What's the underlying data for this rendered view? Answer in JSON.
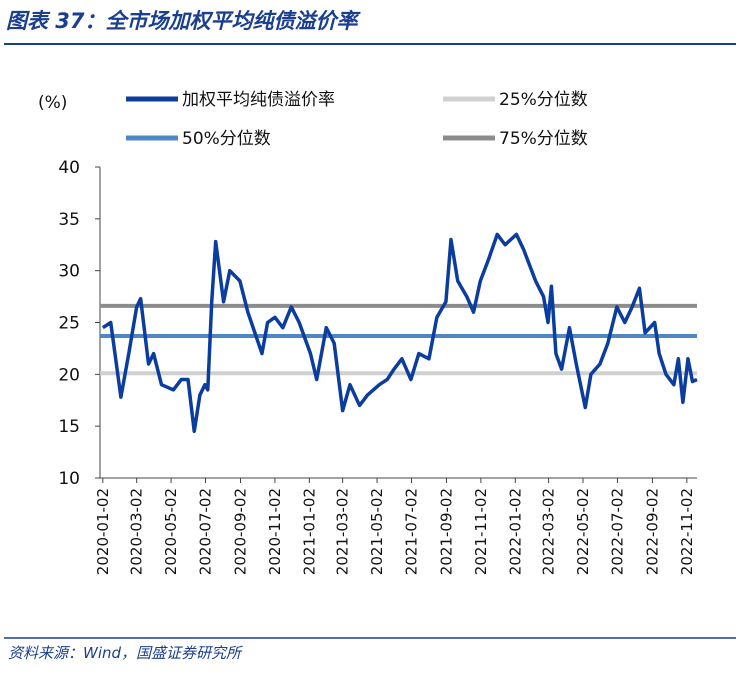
{
  "title": "图表 37：全市场加权平均纯债溢价率",
  "source": "资料来源：Wind，国盛证券研究所",
  "chart_data": {
    "type": "line",
    "y_unit_label": "(%)",
    "x": [
      "2020-01-02",
      "2020-01-16",
      "2020-02-03",
      "2020-02-17",
      "2020-03-02",
      "2020-03-09",
      "2020-03-23",
      "2020-04-01",
      "2020-04-15",
      "2020-05-06",
      "2020-05-20",
      "2020-06-01",
      "2020-06-12",
      "2020-06-22",
      "2020-07-01",
      "2020-07-06",
      "2020-07-13",
      "2020-07-20",
      "2020-08-03",
      "2020-08-14",
      "2020-09-01",
      "2020-09-15",
      "2020-10-10",
      "2020-10-20",
      "2020-11-02",
      "2020-11-16",
      "2020-12-01",
      "2020-12-15",
      "2021-01-04",
      "2021-01-15",
      "2021-02-01",
      "2021-02-15",
      "2021-03-02",
      "2021-03-15",
      "2021-04-01",
      "2021-04-15",
      "2021-05-06",
      "2021-05-20",
      "2021-06-01",
      "2021-06-15",
      "2021-07-01",
      "2021-07-15",
      "2021-08-02",
      "2021-08-16",
      "2021-09-01",
      "2021-09-10",
      "2021-09-22",
      "2021-10-08",
      "2021-10-20",
      "2021-11-01",
      "2021-11-15",
      "2021-12-01",
      "2021-12-15",
      "2022-01-04",
      "2022-01-17",
      "2022-02-07",
      "2022-02-21",
      "2022-03-01",
      "2022-03-07",
      "2022-03-15",
      "2022-03-25",
      "2022-04-08",
      "2022-04-20",
      "2022-05-06",
      "2022-05-16",
      "2022-06-01",
      "2022-06-15",
      "2022-07-01",
      "2022-07-15",
      "2022-07-28",
      "2022-08-10",
      "2022-08-20",
      "2022-09-06",
      "2022-09-14",
      "2022-09-26",
      "2022-10-10",
      "2022-10-18",
      "2022-10-26",
      "2022-11-04",
      "2022-11-12",
      "2022-11-20"
    ],
    "xlim": [
      "2019-12-28",
      "2022-11-20"
    ],
    "xticks": [
      "2020-01-02",
      "2020-03-02",
      "2020-05-02",
      "2020-07-02",
      "2020-09-02",
      "2020-11-02",
      "2021-01-02",
      "2021-03-02",
      "2021-05-02",
      "2021-07-02",
      "2021-09-02",
      "2021-11-02",
      "2022-01-02",
      "2022-03-02",
      "2022-05-02",
      "2022-07-02",
      "2022-09-02",
      "2022-11-02"
    ],
    "ylim": [
      10,
      40
    ],
    "yticks": [
      10,
      15,
      20,
      25,
      30,
      35,
      40
    ],
    "series": [
      {
        "name": "加权平均纯债溢价率",
        "color": "#0b3d9e",
        "values": [
          24.5,
          25,
          17.8,
          22,
          26.5,
          27.3,
          21,
          22,
          19,
          18.5,
          19.5,
          19.5,
          14.5,
          18,
          19,
          18.5,
          27,
          32.8,
          27,
          30,
          29,
          26,
          22,
          25,
          25.5,
          24.5,
          26.5,
          25,
          22,
          19.5,
          24.5,
          23,
          16.5,
          19,
          17,
          18,
          19,
          19.5,
          20.5,
          21.5,
          19.5,
          22,
          21.5,
          25.5,
          27,
          33,
          29,
          27.5,
          26,
          29,
          31,
          33.5,
          32.5,
          33.5,
          32,
          29,
          27.5,
          25,
          28.5,
          22,
          20.5,
          24.5,
          21,
          16.8,
          20,
          21,
          23,
          26.5,
          25,
          26.5,
          28.3,
          24,
          25,
          22,
          20,
          19,
          21.5,
          17.3,
          21.5,
          19.3,
          19.5
        ]
      }
    ],
    "reference_lines": [
      {
        "name": "25%分位数",
        "color": "#d0d0d0",
        "value": 20.1
      },
      {
        "name": "50%分位数",
        "color": "#4f86c6",
        "value": 23.7
      },
      {
        "name": "75%分位数",
        "color": "#8c8c8c",
        "value": 26.6
      }
    ]
  }
}
